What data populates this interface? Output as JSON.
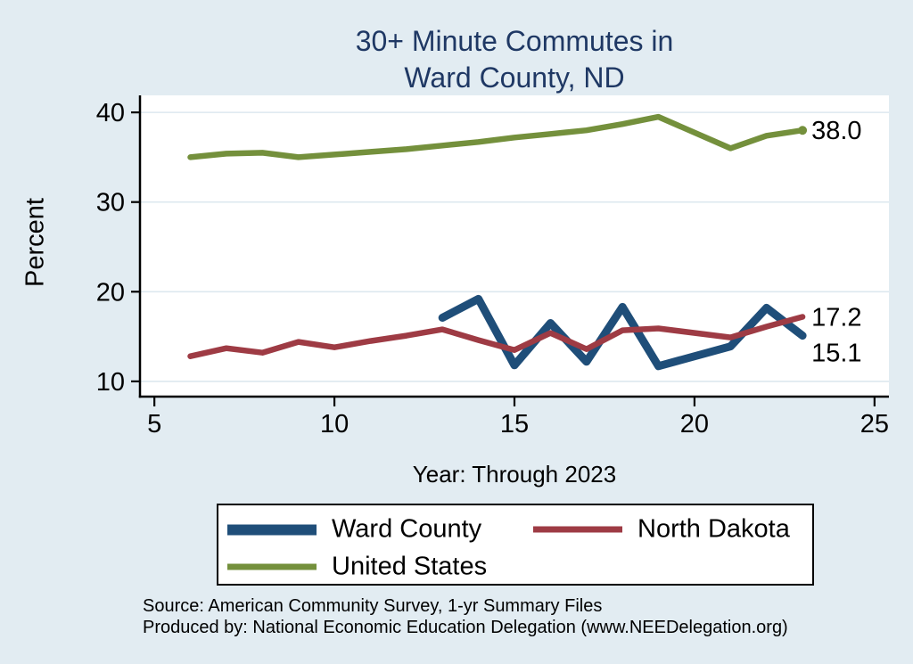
{
  "title": {
    "line1": "30+ Minute Commutes in",
    "line2": "Ward County, ND"
  },
  "axes": {
    "y_label": "Percent",
    "x_label": "Year: Through 2023"
  },
  "chart_data": {
    "type": "line",
    "title": "30+ Minute Commutes in Ward County, ND",
    "xlabel": "Year: Through 2023",
    "ylabel": "Percent",
    "xlim": [
      4.6,
      25.4
    ],
    "ylim": [
      8.3,
      41.9
    ],
    "x_ticks": [
      5,
      10,
      15,
      20,
      25
    ],
    "y_ticks": [
      10,
      20,
      30,
      40
    ],
    "grid": "horizontal",
    "legend_position": "bottom",
    "series": [
      {
        "name": "United States",
        "color": "#74903c",
        "stroke_width": 6.5,
        "end_label": "38.0",
        "end_marker": true,
        "points": [
          [
            6,
            35.0
          ],
          [
            7,
            35.4
          ],
          [
            8,
            35.5
          ],
          [
            9,
            35.0
          ],
          [
            10,
            35.3
          ],
          [
            11,
            35.6
          ],
          [
            12,
            35.9
          ],
          [
            13,
            36.3
          ],
          [
            14,
            36.7
          ],
          [
            15,
            37.2
          ],
          [
            16,
            37.6
          ],
          [
            17,
            38.0
          ],
          [
            18,
            38.7
          ],
          [
            19,
            39.5
          ],
          [
            21,
            36.0
          ],
          [
            22,
            37.4
          ],
          [
            23,
            38.0
          ]
        ]
      },
      {
        "name": "Ward County",
        "color": "#1f4e79",
        "stroke_width": 9,
        "end_label": "15.1",
        "end_marker": false,
        "points": [
          [
            13,
            17.1
          ],
          [
            14,
            19.2
          ],
          [
            15,
            11.8
          ],
          [
            16,
            16.5
          ],
          [
            17,
            12.2
          ],
          [
            18,
            18.3
          ],
          [
            19,
            11.7
          ],
          [
            21,
            13.9
          ],
          [
            22,
            18.2
          ],
          [
            23,
            15.1
          ]
        ]
      },
      {
        "name": "North Dakota",
        "color": "#9e3b44",
        "stroke_width": 6.5,
        "end_label": "17.2",
        "end_marker": false,
        "points": [
          [
            6,
            12.8
          ],
          [
            7,
            13.7
          ],
          [
            8,
            13.2
          ],
          [
            9,
            14.4
          ],
          [
            10,
            13.8
          ],
          [
            11,
            14.5
          ],
          [
            12,
            15.1
          ],
          [
            13,
            15.8
          ],
          [
            14,
            14.6
          ],
          [
            15,
            13.5
          ],
          [
            16,
            15.4
          ],
          [
            17,
            13.6
          ],
          [
            18,
            15.7
          ],
          [
            19,
            15.9
          ],
          [
            21,
            14.9
          ],
          [
            22,
            16.1
          ],
          [
            23,
            17.2
          ]
        ]
      }
    ]
  },
  "legend": {
    "items": [
      {
        "label": "Ward County"
      },
      {
        "label": "North Dakota"
      },
      {
        "label": "United States"
      }
    ]
  },
  "source": {
    "line1": "Source: American Community Survey, 1-yr Summary Files",
    "line2": "Produced by: National Economic Education Delegation (www.NEEDelegation.org)"
  },
  "colors": {
    "background": "#e2ecf2",
    "plot_background": "#ffffff",
    "gridline": "#dde8ef",
    "axis": "#000000",
    "title_text": "#1f3864",
    "ward_county": "#1f4e79",
    "north_dakota": "#9e3b44",
    "united_states": "#74903c"
  }
}
